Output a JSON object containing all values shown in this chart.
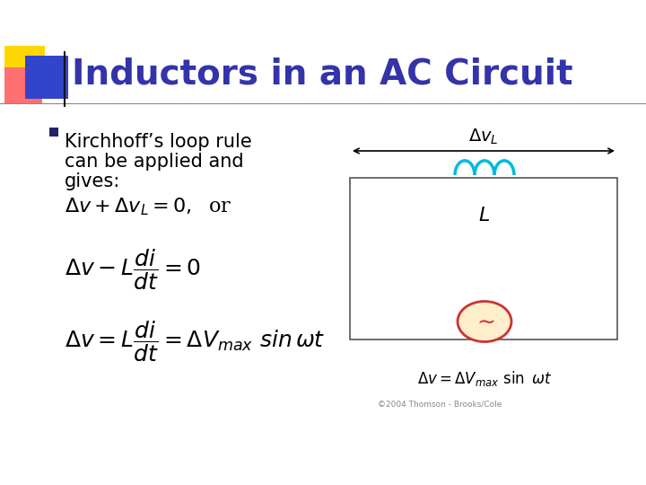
{
  "title": "Inductors in an AC Circuit",
  "title_color": "#3333AA",
  "title_fontsize": 28,
  "background_color": "#FFFFFF",
  "bullet_text_line1": "Kirchhoff’s loop rule",
  "bullet_text_line2": "can be applied and",
  "bullet_text_line3": "gives:",
  "bullet_color": "#000000",
  "bullet_fontsize": 15,
  "eq1": "$\\Delta v + \\Delta v_L = 0,$  or",
  "eq2": "$\\Delta v - L\\dfrac{di}{dt} = 0$",
  "eq3": "$\\Delta v = L\\dfrac{di}{dt} = \\Delta V_{max}\\ sin\\,\\omega t$",
  "eq_fontsize": 15,
  "circuit_eq": "$\\Delta v = \\Delta V_{max}\\ \\sin\\ \\omega t$",
  "circuit_eq_fontsize": 12,
  "dv_label": "$\\Delta v_L$",
  "L_label": "$L$",
  "square_yellow": "#FFD700",
  "square_red": "#FF7070",
  "square_blue": "#3344CC",
  "header_line_color": "#888888",
  "coil_color": "#00BBDD",
  "ac_fill": "#FFEECC",
  "ac_stroke": "#CC3333",
  "ac_tilde_color": "#CC3333",
  "copyright": "©2004 Thomson - Brooks/Cole",
  "bullet_sq_color": "#222266"
}
